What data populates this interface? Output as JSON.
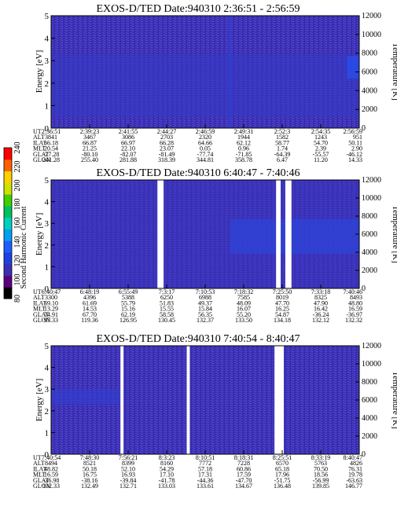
{
  "colors": {
    "background": "#3a2fb5",
    "speckle": "#5a4ccf",
    "band": "#1f5cff",
    "gap": "#ffffff",
    "colorbar": [
      "#000000",
      "#5a0080",
      "#3a2fb5",
      "#2040e0",
      "#1f5cff",
      "#00a0f0",
      "#00d0c0",
      "#00c060",
      "#40d000",
      "#d0e000",
      "#ffd000",
      "#ff6000",
      "#ff0000"
    ]
  },
  "colorbar": {
    "label": "Second Harmonic Current",
    "ticks": [
      "80",
      "100",
      "120",
      "140",
      "160",
      "180",
      "200",
      "220",
      "240"
    ]
  },
  "row_labels": [
    "UT",
    "ALT",
    "ILAT",
    "MLT",
    "GLAT",
    "GLON"
  ],
  "chart_data": [
    {
      "type": "heatmap",
      "title": "EXOS-D/TED   Date:940310  2:36:51 - 2:56:59",
      "ylabel": "Energy [eV]",
      "y2label": "Temperature [K]",
      "ylim": [
        0,
        5
      ],
      "y2lim": [
        0,
        12000
      ],
      "yticks": [
        "0",
        "1",
        "2",
        "3",
        "4",
        "5"
      ],
      "y2ticks": [
        "0",
        "2000",
        "4000",
        "6000",
        "8000",
        "10000",
        "12000"
      ],
      "gaps": [],
      "bands": [
        {
          "t0": 0.0,
          "t1": 1.0,
          "e0": 0.5,
          "e1": 3.3,
          "level": 0.2
        },
        {
          "t0": 0.96,
          "t1": 1.0,
          "e0": 2.2,
          "e1": 3.2,
          "level": 0.7
        },
        {
          "t0": 0.575,
          "t1": 0.585,
          "e0": 0.0,
          "e1": 5.0,
          "level": 0.4
        }
      ],
      "ephemeris": {
        "UT": [
          "2:36:51",
          "2:39:23",
          "2:41:55",
          "2:44:27",
          "2:46:59",
          "2:49:31",
          "2:52:3",
          "2:54:35",
          "2:56:59"
        ],
        "ALT": [
          "3841",
          "3467",
          "3086",
          "2703",
          "2320",
          "1944",
          "1582",
          "1243",
          "951"
        ],
        "ILAT": [
          "66.18",
          "66.87",
          "66.97",
          "66.28",
          "64.66",
          "62.12",
          "58.77",
          "54.70",
          "50.11"
        ],
        "MLT": [
          "20.54",
          "21.25",
          "22.10",
          "23.07",
          "0.05",
          "0.96",
          "1.74",
          "2.39",
          "2.90"
        ],
        "GLAT": [
          "-77.28",
          "-80.10",
          "-82.07",
          "-81.49",
          "-77.74",
          "-71.85",
          "-64.39",
          "-55.57",
          "-46.12"
        ],
        "GLON": [
          "241.28",
          "255.40",
          "281.88",
          "318.39",
          "344.81",
          "358.78",
          "6.47",
          "11.20",
          "14.33"
        ]
      }
    },
    {
      "type": "heatmap",
      "title": "EXOS-D/TED   Date:940310  6:40:47 - 7:40:46",
      "ylabel": "Energy [eV]",
      "y2label": "Temperature [K]",
      "ylim": [
        0,
        5
      ],
      "y2lim": [
        0,
        12000
      ],
      "yticks": [
        "0",
        "1",
        "2",
        "3",
        "4",
        "5"
      ],
      "y2ticks": [
        "0",
        "2000",
        "4000",
        "6000",
        "8000",
        "10000",
        "12000"
      ],
      "gaps": [
        [
          0.345,
          0.365
        ],
        [
          0.73,
          0.745
        ],
        [
          0.76,
          0.78
        ]
      ],
      "bands": [
        {
          "t0": 0.58,
          "t1": 1.0,
          "e0": 1.6,
          "e1": 3.2,
          "level": 0.75
        },
        {
          "t0": 0.0,
          "t1": 1.0,
          "e0": 0.0,
          "e1": 5.0,
          "level": 0.1
        }
      ],
      "ephemeris": {
        "UT": [
          "6:40:47",
          "6:48:19",
          "6:55:49",
          "7:3:17",
          "7:10:53",
          "7:18:32",
          "7:25:50",
          "7:33:18",
          "7:40:46"
        ],
        "ALT": [
          "3300",
          "4396",
          "5388",
          "6250",
          "6988",
          "7585",
          "8019",
          "8325",
          "8493"
        ],
        "ILAT": [
          "69.10",
          "61.69",
          "55.79",
          "51.83",
          "49.37",
          "48.09",
          "47.70",
          "47.90",
          "48.80"
        ],
        "MLT": [
          "13.29",
          "14.53",
          "15.16",
          "15.55",
          "15.84",
          "16.07",
          "16.25",
          "16.42",
          "16.59"
        ],
        "GLAT": [
          "74.91",
          "67.70",
          "62.19",
          "58.58",
          "56.35",
          "55.20",
          "54.87",
          "-36.24",
          "-36.97"
        ],
        "GLON": [
          "97.33",
          "119.36",
          "126.95",
          "130.45",
          "132.37",
          "133.50",
          "134.18",
          "132.12",
          "132.32"
        ]
      }
    },
    {
      "type": "heatmap",
      "title": "EXOS-D/TED   Date:940310  7:40:54 - 8:40:47",
      "ylabel": "Energy [eV]",
      "y2label": "Temperature [K]",
      "ylim": [
        0,
        5
      ],
      "y2lim": [
        0,
        12000
      ],
      "yticks": [
        "0",
        "1",
        "2",
        "3",
        "4",
        "5"
      ],
      "y2ticks": [
        "0",
        "2000",
        "4000",
        "6000",
        "8000",
        "10000",
        "12000"
      ],
      "gaps": [
        [
          0.225,
          0.235
        ],
        [
          0.44,
          0.45
        ],
        [
          0.725,
          0.755
        ]
      ],
      "bands": [
        {
          "t0": 0.0,
          "t1": 0.23,
          "e0": 2.3,
          "e1": 3.0,
          "level": 0.35
        }
      ],
      "ephemeris": {
        "UT": [
          "7:40:54",
          "7:48:30",
          "7:56:21",
          "8:3:23",
          "8:10:51",
          "8:18:31",
          "8:25:51",
          "8:33:19",
          "8:40:47"
        ],
        "ALT": [
          "8494",
          "8521",
          "8399",
          "8160",
          "7772",
          "7228",
          "6570",
          "5763",
          "4826"
        ],
        "ILAT": [
          "48.82",
          "50.18",
          "52.10",
          "54.29",
          "57.18",
          "60.86",
          "65.18",
          "70.50",
          "76.31"
        ],
        "MLT": [
          "16.59",
          "16.75",
          "16.93",
          "17.10",
          "17.31",
          "17.59",
          "17.96",
          "18.56",
          "19.78"
        ],
        "GLAT": [
          "-36.98",
          "-38.16",
          "-39.84",
          "-41.78",
          "-44.36",
          "-47.70",
          "-51.75",
          "-56.99",
          "-63.63"
        ],
        "GLON": [
          "132.33",
          "132.49",
          "132.71",
          "133.03",
          "133.61",
          "134.67",
          "136.48",
          "139.85",
          "146.77"
        ]
      }
    }
  ]
}
